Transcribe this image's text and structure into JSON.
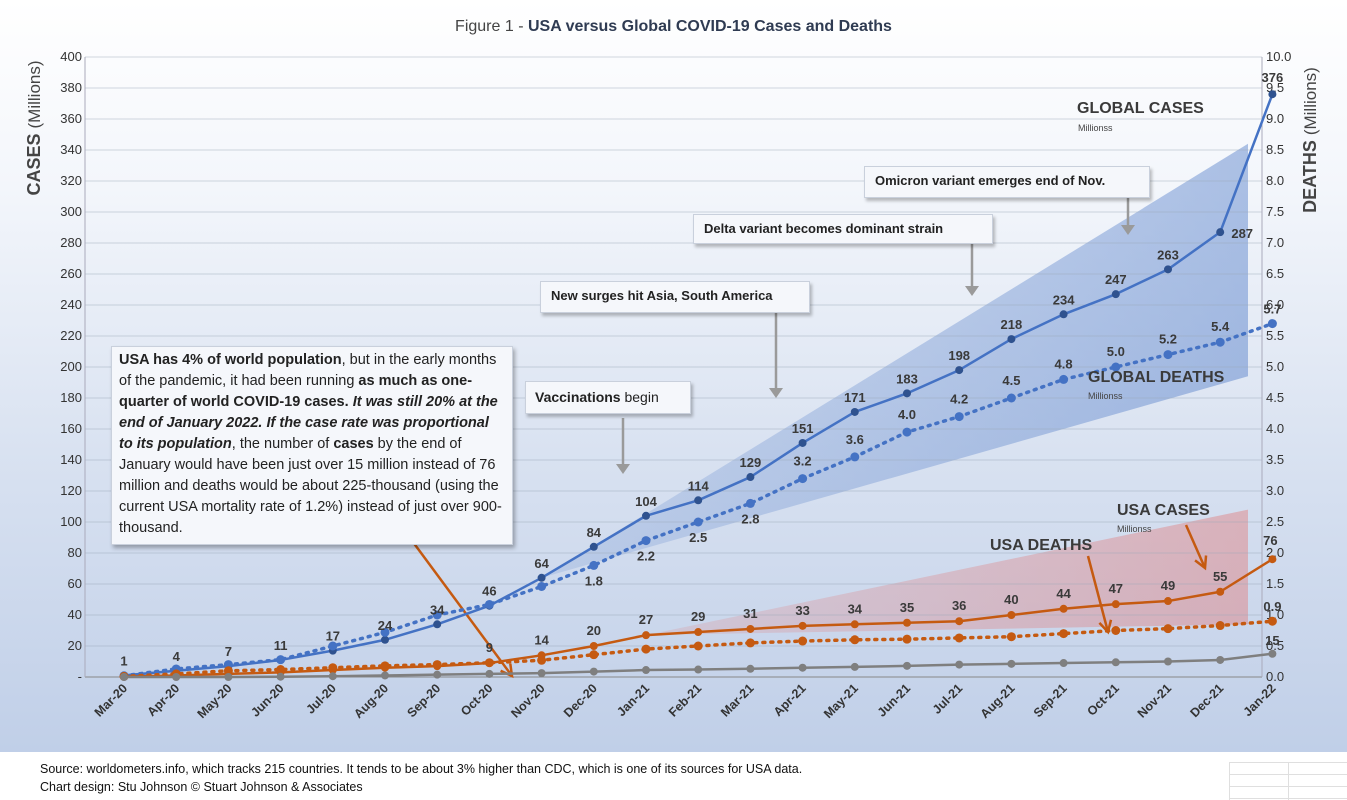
{
  "title": {
    "prefix": "Figure 1 - ",
    "main": "USA versus Global COVID-19 Cases and Deaths"
  },
  "colors": {
    "global": "#4472c4",
    "global_dark": "#2f528f",
    "usa": "#c55a11",
    "usa_dark": "#843c0c",
    "gray": "#7f7f7f",
    "label": "#3a3a3a"
  },
  "chart_data": {
    "type": "line",
    "categories": [
      "Mar-20",
      "Apr-20",
      "May-20",
      "Jun-20",
      "Jul-20",
      "Aug-20",
      "Sep-20",
      "Oct-20",
      "Nov-20",
      "Dec-20",
      "Jan-21",
      "Feb-21",
      "Mar-21",
      "Apr-21",
      "May-21",
      "Jun-21",
      "Jul-21",
      "Aug-21",
      "Sep-21",
      "Oct-21",
      "Nov-21",
      "Dec-21",
      "Jan-22"
    ],
    "y_left": {
      "label": "CASES",
      "unit": "(Millions)",
      "min": 0,
      "max": 400,
      "step": 20,
      "zero_label": "-"
    },
    "y_right": {
      "label": "DEATHS",
      "unit": "(Millions)",
      "min": 0,
      "max": 10,
      "step": 0.5
    },
    "series": [
      {
        "name": "GLOBAL CASES",
        "axis": "left",
        "style": "solid",
        "values": [
          1,
          4,
          7,
          11,
          17,
          24,
          34,
          46,
          64,
          84,
          104,
          114,
          129,
          151,
          171,
          183,
          198,
          218,
          234,
          247,
          263,
          287,
          376
        ],
        "labels": [
          "1",
          "4",
          "7",
          "11",
          "17",
          "24",
          "34",
          "46",
          "64",
          "84",
          "104",
          "114",
          "129",
          "151",
          "171",
          "183",
          "198",
          "218",
          "234",
          "247",
          "263",
          "287",
          "376"
        ]
      },
      {
        "name": "GLOBAL DEATHS",
        "axis": "right",
        "style": "dotted",
        "values": [
          0.02,
          0.13,
          0.2,
          0.28,
          0.5,
          0.72,
          1.0,
          1.17,
          1.46,
          1.8,
          2.2,
          2.5,
          2.8,
          3.2,
          3.55,
          3.95,
          4.2,
          4.5,
          4.8,
          5.0,
          5.2,
          5.4,
          5.7
        ],
        "labels": [
          "",
          "",
          "",
          "",
          "",
          "",
          "",
          "",
          "",
          "1.8",
          "2.2",
          "2.5",
          "2.8",
          "3.2",
          "3.6",
          "4.0",
          "4.2",
          "4.5",
          "4.8",
          "5.0",
          "5.2",
          "5.4",
          "5.7"
        ]
      },
      {
        "name": "USA CASES",
        "axis": "left",
        "style": "solid",
        "values": [
          0.2,
          1,
          2,
          3,
          4.5,
          6,
          7,
          9,
          14,
          20,
          27,
          29,
          31,
          33,
          34,
          35,
          36,
          40,
          44,
          47,
          49,
          55,
          76
        ],
        "labels": [
          "",
          "",
          "",
          "",
          "",
          "",
          "",
          "9",
          "14",
          "20",
          "27",
          "29",
          "31",
          "33",
          "34",
          "35",
          "36",
          "40",
          "44",
          "47",
          "49",
          "55",
          "76"
        ]
      },
      {
        "name": "USA DEATHS",
        "axis": "right",
        "style": "dotted",
        "values": [
          0.01,
          0.05,
          0.1,
          0.12,
          0.15,
          0.18,
          0.2,
          0.23,
          0.27,
          0.36,
          0.45,
          0.5,
          0.55,
          0.58,
          0.6,
          0.61,
          0.63,
          0.65,
          0.7,
          0.75,
          0.78,
          0.83,
          0.9
        ],
        "labels": [
          "",
          "",
          "",
          "",
          "",
          "",
          "",
          "",
          "",
          "",
          "",
          "",
          "",
          "",
          "",
          "",
          "",
          "",
          "",
          "",
          "",
          "",
          "0.9"
        ]
      },
      {
        "name": "",
        "axis": "left",
        "style": "solid",
        "values": [
          0,
          0,
          0,
          0.2,
          0.5,
          1,
          1.5,
          2,
          2.5,
          3.5,
          4.5,
          4.8,
          5.3,
          6,
          6.5,
          7.2,
          8,
          8.5,
          9,
          9.5,
          10,
          11,
          15
        ],
        "labels": [
          "",
          "",
          "",
          "",
          "",
          "",
          "",
          "",
          "",
          "",
          "",
          "",
          "",
          "",
          "",
          "",
          "",
          "",
          "",
          "",
          "",
          "",
          "15"
        ]
      }
    ],
    "bands": [
      {
        "name": "global",
        "start_index": 8,
        "start_value": 64,
        "end_upper": 344,
        "end_lower": 194
      },
      {
        "name": "usa",
        "start_index": 10,
        "start_value": 27,
        "end_upper": 108,
        "end_lower": 34
      }
    ]
  },
  "series_labels": {
    "global_cases": "GLOBAL CASES",
    "global_cases_unit": "Millionss",
    "global_deaths": "GLOBAL DEATHS",
    "global_deaths_unit": "Millionss",
    "usa_cases": "USA CASES",
    "usa_cases_unit": "Millionss",
    "usa_deaths": "USA DEATHS"
  },
  "annotations": {
    "omicron": "Omicron variant emerges end of Nov.",
    "delta": "Delta variant becomes dominant strain",
    "surges": "New surges hit Asia, South America",
    "vacc_bold": "Vaccinations",
    "vacc_rest": " begin"
  },
  "callout": {
    "p1": "USA has 4% of world population",
    "p2": ", but in the early months of the pandemic, it had been running ",
    "p3": "as much as one-quarter of world COVID-19 cases.",
    "p4": " ",
    "p5": "It was still 20% at the end of January 2022. If the case rate was proportional to its population",
    "p6": ", the number of ",
    "p7": "cases",
    "p8": " by the end of January would have been  just over 15 million instead of 76 million and deaths would be about 225-thousand (using the current USA mortality rate of 1.2%) instead of just over 900-thousand."
  },
  "footer": {
    "source": "Source: worldometers.info, which tracks 215 countries. It tends to be about 3% higher than CDC, which is one of its sources for USA data.",
    "design": "Chart design: Stu Johnson  © Stuart Johnson & Associates"
  }
}
